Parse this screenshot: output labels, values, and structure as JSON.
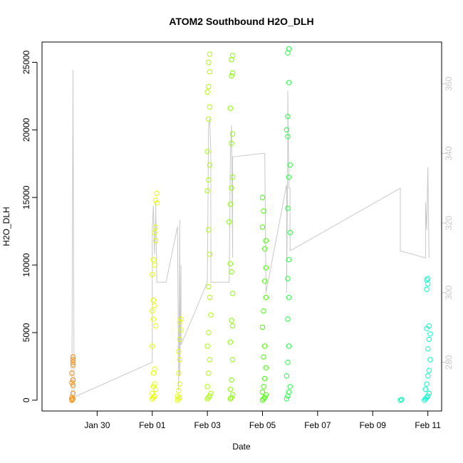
{
  "chart_data": {
    "type": "scatter",
    "title": "ATOM2 Southbound H2O_DLH",
    "xlabel": "Date",
    "ylabel": "H2O_DLH",
    "x_range_days": [
      "2017-01-28T00:00",
      "2017-02-11T12:00"
    ],
    "ylim": [
      -800,
      26500
    ],
    "y_ticks": [
      0,
      5000,
      10000,
      15000,
      20000,
      25000
    ],
    "x_ticks": [
      {
        "label": "Jan 30",
        "date": "2017-01-30"
      },
      {
        "label": "Feb 01",
        "date": "2017-02-01"
      },
      {
        "label": "Feb 03",
        "date": "2017-02-03"
      },
      {
        "label": "Feb 05",
        "date": "2017-02-05"
      },
      {
        "label": "Feb 07",
        "date": "2017-02-07"
      },
      {
        "label": "Feb 09",
        "date": "2017-02-09"
      },
      {
        "label": "Feb 11",
        "date": "2017-02-11"
      }
    ],
    "right_axis": {
      "ylim": [
        266,
        372
      ],
      "ticks": [
        280,
        300,
        320,
        340,
        360
      ],
      "color": "#c8c8c8"
    },
    "grid": false,
    "legend": "none",
    "series": [
      {
        "color": "#ff8c00",
        "points": [
          [
            "2017-01-29T02:00",
            0
          ],
          [
            "2017-01-29T02:00",
            50
          ],
          [
            "2017-01-29T03:00",
            100
          ],
          [
            "2017-01-29T02:00",
            200
          ],
          [
            "2017-01-29T03:00",
            1100
          ],
          [
            "2017-01-29T02:00",
            1300
          ],
          [
            "2017-01-29T03:00",
            1500
          ],
          [
            "2017-01-29T02:00",
            2000
          ],
          [
            "2017-01-29T03:00",
            2600
          ],
          [
            "2017-01-29T03:00",
            2800
          ],
          [
            "2017-01-29T03:00",
            3000
          ],
          [
            "2017-01-29T03:00",
            3200
          ],
          [
            "2017-01-29T03:00",
            500
          ]
        ]
      },
      {
        "color": "#e6ff00",
        "points": [
          [
            "2017-02-01T00:00",
            100
          ],
          [
            "2017-02-01T01:00",
            200
          ],
          [
            "2017-02-01T02:00",
            300
          ],
          [
            "2017-02-01T00:00",
            500
          ],
          [
            "2017-02-01T03:00",
            800
          ],
          [
            "2017-02-01T01:00",
            1000
          ],
          [
            "2017-02-01T02:00",
            1200
          ],
          [
            "2017-02-01T01:00",
            2000
          ],
          [
            "2017-02-01T02:00",
            2300
          ],
          [
            "2017-02-01T00:00",
            4000
          ],
          [
            "2017-02-01T03:00",
            5500
          ],
          [
            "2017-02-01T01:00",
            6000
          ],
          [
            "2017-02-01T00:00",
            6600
          ],
          [
            "2017-02-01T02:00",
            7000
          ],
          [
            "2017-02-01T01:00",
            7400
          ],
          [
            "2017-02-01T00:00",
            9300
          ],
          [
            "2017-02-01T02:00",
            10000
          ],
          [
            "2017-02-01T01:00",
            10400
          ],
          [
            "2017-02-01T03:00",
            11800
          ],
          [
            "2017-02-01T02:00",
            12400
          ],
          [
            "2017-02-01T03:00",
            12800
          ],
          [
            "2017-02-01T04:00",
            14600
          ],
          [
            "2017-02-01T03:00",
            14800
          ],
          [
            "2017-02-01T04:00",
            15300
          ],
          [
            "2017-02-01T22:00",
            0
          ],
          [
            "2017-02-01T23:00",
            100
          ],
          [
            "2017-02-02T00:00",
            200
          ],
          [
            "2017-02-01T22:00",
            300
          ],
          [
            "2017-02-01T23:00",
            700
          ],
          [
            "2017-02-02T00:00",
            1200
          ],
          [
            "2017-02-01T23:00",
            2000
          ],
          [
            "2017-02-02T00:00",
            3000
          ],
          [
            "2017-02-01T23:00",
            3600
          ],
          [
            "2017-02-02T00:00",
            4500
          ],
          [
            "2017-02-02T01:00",
            5200
          ],
          [
            "2017-02-02T00:00",
            5800
          ],
          [
            "2017-02-02T01:00",
            6000
          ]
        ]
      },
      {
        "color": "#aaff00",
        "points": [
          [
            "2017-02-03T00:00",
            100
          ],
          [
            "2017-02-03T01:00",
            200
          ],
          [
            "2017-02-03T02:00",
            300
          ],
          [
            "2017-02-03T03:00",
            500
          ],
          [
            "2017-02-03T00:00",
            1000
          ],
          [
            "2017-02-03T01:00",
            2000
          ],
          [
            "2017-02-03T02:00",
            3000
          ],
          [
            "2017-02-03T00:00",
            4000
          ],
          [
            "2017-02-03T01:00",
            5000
          ],
          [
            "2017-02-03T03:00",
            6300
          ],
          [
            "2017-02-03T02:00",
            7600
          ],
          [
            "2017-02-03T01:00",
            8400
          ],
          [
            "2017-02-03T02:00",
            10800
          ],
          [
            "2017-02-03T01:00",
            12600
          ],
          [
            "2017-02-03T00:00",
            15500
          ],
          [
            "2017-02-03T01:00",
            16300
          ],
          [
            "2017-02-03T02:00",
            17400
          ],
          [
            "2017-02-03T00:00",
            18400
          ],
          [
            "2017-02-03T01:00",
            20800
          ],
          [
            "2017-02-03T02:00",
            21700
          ],
          [
            "2017-02-03T00:00",
            22800
          ],
          [
            "2017-02-03T01:00",
            23200
          ],
          [
            "2017-02-03T02:00",
            24300
          ],
          [
            "2017-02-03T01:00",
            25000
          ],
          [
            "2017-02-03T02:00",
            25600
          ]
        ]
      },
      {
        "color": "#88ff00",
        "points": [
          [
            "2017-02-03T20:00",
            100
          ],
          [
            "2017-02-03T21:00",
            200
          ],
          [
            "2017-02-03T22:00",
            400
          ],
          [
            "2017-02-03T20:00",
            800
          ],
          [
            "2017-02-03T21:00",
            1500
          ],
          [
            "2017-02-03T22:00",
            3000
          ],
          [
            "2017-02-03T20:00",
            4300
          ],
          [
            "2017-02-03T22:00",
            5500
          ],
          [
            "2017-02-03T21:00",
            5900
          ],
          [
            "2017-02-03T22:00",
            7900
          ],
          [
            "2017-02-03T21:00",
            9500
          ],
          [
            "2017-02-03T20:00",
            10100
          ],
          [
            "2017-02-03T19:00",
            13200
          ],
          [
            "2017-02-03T20:00",
            14500
          ],
          [
            "2017-02-03T21:00",
            15700
          ],
          [
            "2017-02-03T22:00",
            16500
          ],
          [
            "2017-02-03T21:00",
            19000
          ],
          [
            "2017-02-03T22:00",
            19700
          ],
          [
            "2017-02-03T20:00",
            21600
          ],
          [
            "2017-02-03T21:00",
            24000
          ],
          [
            "2017-02-03T22:00",
            24200
          ],
          [
            "2017-02-03T21:00",
            25200
          ],
          [
            "2017-02-03T22:00",
            25500
          ]
        ]
      },
      {
        "color": "#44ff00",
        "points": [
          [
            "2017-02-05T00:00",
            0
          ],
          [
            "2017-02-05T01:00",
            100
          ],
          [
            "2017-02-05T02:00",
            200
          ],
          [
            "2017-02-05T03:00",
            400
          ],
          [
            "2017-02-05T00:00",
            600
          ],
          [
            "2017-02-05T01:00",
            1000
          ],
          [
            "2017-02-05T02:00",
            1600
          ],
          [
            "2017-02-05T03:00",
            2400
          ],
          [
            "2017-02-05T01:00",
            3200
          ],
          [
            "2017-02-05T02:00",
            4000
          ],
          [
            "2017-02-05T00:00",
            5400
          ],
          [
            "2017-02-05T01:00",
            6600
          ],
          [
            "2017-02-05T03:00",
            7600
          ],
          [
            "2017-02-05T02:00",
            8800
          ],
          [
            "2017-02-05T03:00",
            9800
          ],
          [
            "2017-02-05T02:00",
            11200
          ],
          [
            "2017-02-05T03:00",
            11800
          ],
          [
            "2017-02-05T00:00",
            12800
          ],
          [
            "2017-02-05T01:00",
            14000
          ],
          [
            "2017-02-05T00:00",
            15000
          ]
        ]
      },
      {
        "color": "#22ff44",
        "points": [
          [
            "2017-02-05T21:00",
            100
          ],
          [
            "2017-02-05T22:00",
            300
          ],
          [
            "2017-02-05T23:00",
            600
          ],
          [
            "2017-02-06T00:00",
            1000
          ],
          [
            "2017-02-05T21:00",
            1800
          ],
          [
            "2017-02-05T22:00",
            2800
          ],
          [
            "2017-02-05T23:00",
            4000
          ],
          [
            "2017-02-05T22:00",
            6000
          ],
          [
            "2017-02-05T23:00",
            7600
          ],
          [
            "2017-02-05T22:00",
            9000
          ],
          [
            "2017-02-05T23:00",
            10400
          ],
          [
            "2017-02-06T00:00",
            12400
          ],
          [
            "2017-02-05T22:00",
            14200
          ],
          [
            "2017-02-05T23:00",
            16500
          ],
          [
            "2017-02-06T00:00",
            17400
          ],
          [
            "2017-02-05T22:00",
            19500
          ],
          [
            "2017-02-05T21:00",
            20000
          ],
          [
            "2017-02-05T22:00",
            21000
          ],
          [
            "2017-02-05T23:00",
            23500
          ],
          [
            "2017-02-05T22:00",
            25700
          ],
          [
            "2017-02-05T23:00",
            26000
          ]
        ]
      },
      {
        "color": "#00ffaa",
        "points": [
          [
            "2017-02-10T00:00",
            0
          ],
          [
            "2017-02-10T01:00",
            50
          ]
        ]
      },
      {
        "color": "#00ffcc",
        "points": [
          [
            "2017-02-10T21:00",
            0
          ],
          [
            "2017-02-10T22:00",
            100
          ],
          [
            "2017-02-10T23:00",
            200
          ],
          [
            "2017-02-11T00:00",
            300
          ],
          [
            "2017-02-11T01:00",
            500
          ],
          [
            "2017-02-10T22:00",
            800
          ],
          [
            "2017-02-10T23:00",
            1200
          ],
          [
            "2017-02-11T00:00",
            1800
          ],
          [
            "2017-02-11T01:00",
            2200
          ],
          [
            "2017-02-11T02:00",
            3000
          ],
          [
            "2017-02-11T00:00",
            3800
          ],
          [
            "2017-02-11T01:00",
            4500
          ],
          [
            "2017-02-11T02:00",
            4900
          ],
          [
            "2017-02-10T23:00",
            5300
          ],
          [
            "2017-02-11T01:00",
            5500
          ],
          [
            "2017-02-10T23:00",
            8200
          ],
          [
            "2017-02-11T00:00",
            8600
          ],
          [
            "2017-02-10T23:00",
            8900
          ],
          [
            "2017-02-11T00:00",
            9000
          ]
        ]
      }
    ],
    "line_series": {
      "color": "#c8c8c8",
      "axis": "right",
      "points": [
        [
          "2017-01-29T02:00",
          270
        ],
        [
          "2017-01-29T03:00",
          364
        ],
        [
          "2017-01-29T03:00",
          356
        ],
        [
          "2017-01-29T04:00",
          270
        ],
        [
          "2017-02-01T00:00",
          280
        ],
        [
          "2017-02-01T00:00",
          318
        ],
        [
          "2017-02-01T01:00",
          325
        ],
        [
          "2017-02-01T02:00",
          311
        ],
        [
          "2017-02-01T03:00",
          322
        ],
        [
          "2017-02-01T03:00",
          326
        ],
        [
          "2017-02-01T04:00",
          303
        ],
        [
          "2017-02-01T12:00",
          303
        ],
        [
          "2017-02-01T22:00",
          319
        ],
        [
          "2017-02-01T23:00",
          272
        ],
        [
          "2017-02-02T00:00",
          321
        ],
        [
          "2017-02-02T00:00",
          313
        ],
        [
          "2017-02-02T00:00",
          276
        ],
        [
          "2017-02-02T01:00",
          308
        ],
        [
          "2017-02-02T01:00",
          285
        ],
        [
          "2017-02-03T00:00",
          303
        ],
        [
          "2017-02-03T01:00",
          348
        ],
        [
          "2017-02-03T02:00",
          350
        ],
        [
          "2017-02-03T03:00",
          340
        ],
        [
          "2017-02-03T03:00",
          303
        ],
        [
          "2017-02-03T19:00",
          303
        ],
        [
          "2017-02-03T20:00",
          339
        ],
        [
          "2017-02-03T21:00",
          348
        ],
        [
          "2017-02-03T22:00",
          310
        ],
        [
          "2017-02-03T22:00",
          339
        ],
        [
          "2017-02-05T00:00",
          340
        ],
        [
          "2017-02-05T02:00",
          340
        ],
        [
          "2017-02-05T03:00",
          300
        ],
        [
          "2017-02-05T10:00",
          312
        ],
        [
          "2017-02-05T21:00",
          331
        ],
        [
          "2017-02-05T21:00",
          300
        ],
        [
          "2017-02-05T22:00",
          342
        ],
        [
          "2017-02-05T22:00",
          358
        ],
        [
          "2017-02-05T23:00",
          330
        ],
        [
          "2017-02-06T00:00",
          330
        ],
        [
          "2017-02-06T00:00",
          312
        ],
        [
          "2017-02-10T00:00",
          330
        ],
        [
          "2017-02-10T00:00",
          312
        ],
        [
          "2017-02-10T22:00",
          310
        ],
        [
          "2017-02-10T22:00",
          326
        ],
        [
          "2017-02-10T23:00",
          318
        ],
        [
          "2017-02-11T00:00",
          336
        ],
        [
          "2017-02-11T01:00",
          310
        ]
      ]
    }
  }
}
